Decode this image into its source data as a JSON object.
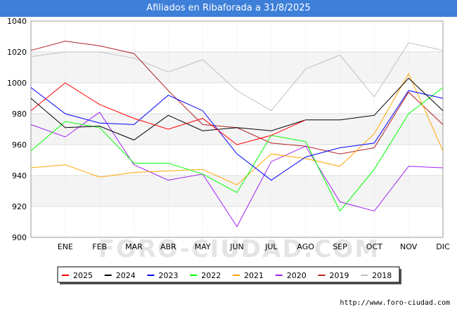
{
  "chart_data": {
    "type": "line",
    "title": "Afiliados en Ribaforada a 31/8/2025",
    "categories": [
      "",
      "ENE",
      "FEB",
      "MAR",
      "ABR",
      "MAY",
      "JUN",
      "JUL",
      "AGO",
      "SEP",
      "OCT",
      "NOV",
      "DIC"
    ],
    "ylim": [
      900,
      1040
    ],
    "yticks": [
      900,
      920,
      940,
      960,
      980,
      1000,
      1020,
      1040
    ],
    "watermark": "FORO-CIUDAD.COM",
    "series": [
      {
        "name": "2025",
        "color": "#ff0000",
        "values": [
          982,
          1000,
          986,
          977,
          970,
          977,
          960,
          966,
          976,
          null,
          null,
          null,
          null
        ]
      },
      {
        "name": "2024",
        "color": "#000000",
        "values": [
          990,
          971,
          972,
          963,
          979,
          969,
          971,
          969,
          976,
          976,
          979,
          1003,
          982
        ]
      },
      {
        "name": "2023",
        "color": "#0000ff",
        "values": [
          997,
          980,
          974,
          973,
          992,
          982,
          954,
          937,
          952,
          958,
          961,
          995,
          990
        ]
      },
      {
        "name": "2022",
        "color": "#00ff00",
        "values": [
          956,
          975,
          971,
          948,
          948,
          941,
          929,
          966,
          962,
          917,
          944,
          980,
          997
        ]
      },
      {
        "name": "2021",
        "color": "#ffa500",
        "values": [
          945,
          947,
          939,
          942,
          943,
          944,
          934,
          954,
          951,
          946,
          967,
          1006,
          956
        ]
      },
      {
        "name": "2020",
        "color": "#a020f0",
        "values": [
          973,
          965,
          981,
          947,
          937,
          941,
          907,
          949,
          959,
          923,
          917,
          946,
          945
        ]
      },
      {
        "name": "2019",
        "color": "#b22222",
        "values": [
          1021,
          1027,
          1024,
          1019,
          995,
          973,
          971,
          961,
          959,
          954,
          958,
          994,
          973
        ]
      },
      {
        "name": "2018",
        "color": "#c0c0c0",
        "values": [
          1017,
          1020,
          1020,
          1016,
          1007,
          1015,
          995,
          982,
          1009,
          1018,
          991,
          1026,
          1021
        ]
      }
    ]
  },
  "source_text": "http://www.foro-ciudad.com"
}
